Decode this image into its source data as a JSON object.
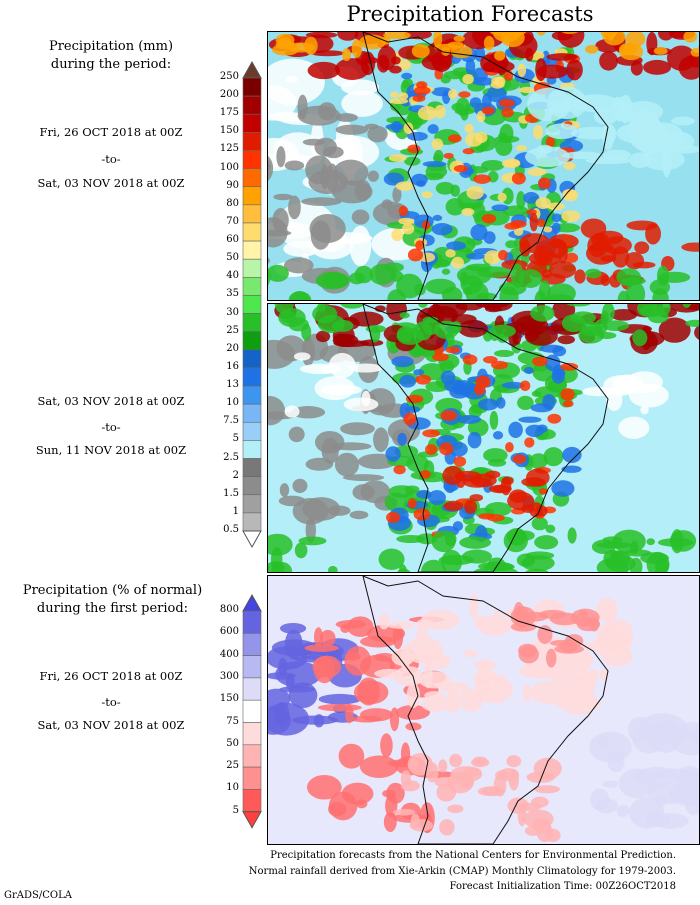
{
  "title": "Precipitation Forecasts",
  "panel1": {
    "heading": [
      "Precipitation (mm)",
      "during the period:"
    ],
    "from": "Fri, 26 OCT 2018 at 00Z",
    "to": "-to-",
    "until": "Sat, 03 NOV 2018 at 00Z"
  },
  "panel2": {
    "from": "Sat, 03 NOV 2018 at 00Z",
    "to": "-to-",
    "until": "Sun, 11 NOV 2018 at 00Z"
  },
  "panel3": {
    "heading": [
      "Precipitation (% of normal)",
      "during the first period:"
    ],
    "from": "Fri, 26 OCT 2018 at 00Z",
    "to": "-to-",
    "until": "Sat, 03 NOV 2018 at 00Z"
  },
  "colorbar_mm": {
    "labels": [
      "250",
      "200",
      "175",
      "150",
      "125",
      "100",
      "90",
      "80",
      "70",
      "60",
      "50",
      "40",
      "35",
      "30",
      "25",
      "20",
      "16",
      "13",
      "10",
      "7.5",
      "5",
      "2.5",
      "2",
      "1.5",
      "1",
      "0.5"
    ],
    "colors": [
      "#7a0000",
      "#a00000",
      "#c20000",
      "#e01c00",
      "#ff3300",
      "#ff6a00",
      "#ffa200",
      "#ffbe3c",
      "#ffdc6e",
      "#fff4a8",
      "#b8f5a8",
      "#78e86e",
      "#4ee84e",
      "#28c028",
      "#0e9e0e",
      "#1464c8",
      "#1e72e6",
      "#3c96f0",
      "#78b6f6",
      "#98cef8",
      "#b4eef8",
      "#787878",
      "#8c8c8c",
      "#a0a0a0",
      "#b8b8b8"
    ],
    "over_color": "#6b3c2c",
    "under_color": "#ffffff"
  },
  "colorbar_pct": {
    "labels": [
      "800",
      "600",
      "400",
      "300",
      "150",
      "75",
      "50",
      "25",
      "10",
      "5"
    ],
    "colors": [
      "#6464e0",
      "#9494ea",
      "#b8b8f2",
      "#dcdcf8",
      "#ffffff",
      "#ffdcdc",
      "#ffb4b4",
      "#ff9090",
      "#ff5a5a"
    ],
    "over_color": "#4444e0",
    "under_color": "#ff4040"
  },
  "footer": [
    "Precipitation forecasts from the National Centers for Environmental Prediction.",
    "Normal rainfall derived from Xie-Arkin (CMAP) Monthly Climatology for 1979-2003.",
    "Forecast Initialization Time: 00Z26OCT2018"
  ],
  "credit": "GrADS/COLA"
}
